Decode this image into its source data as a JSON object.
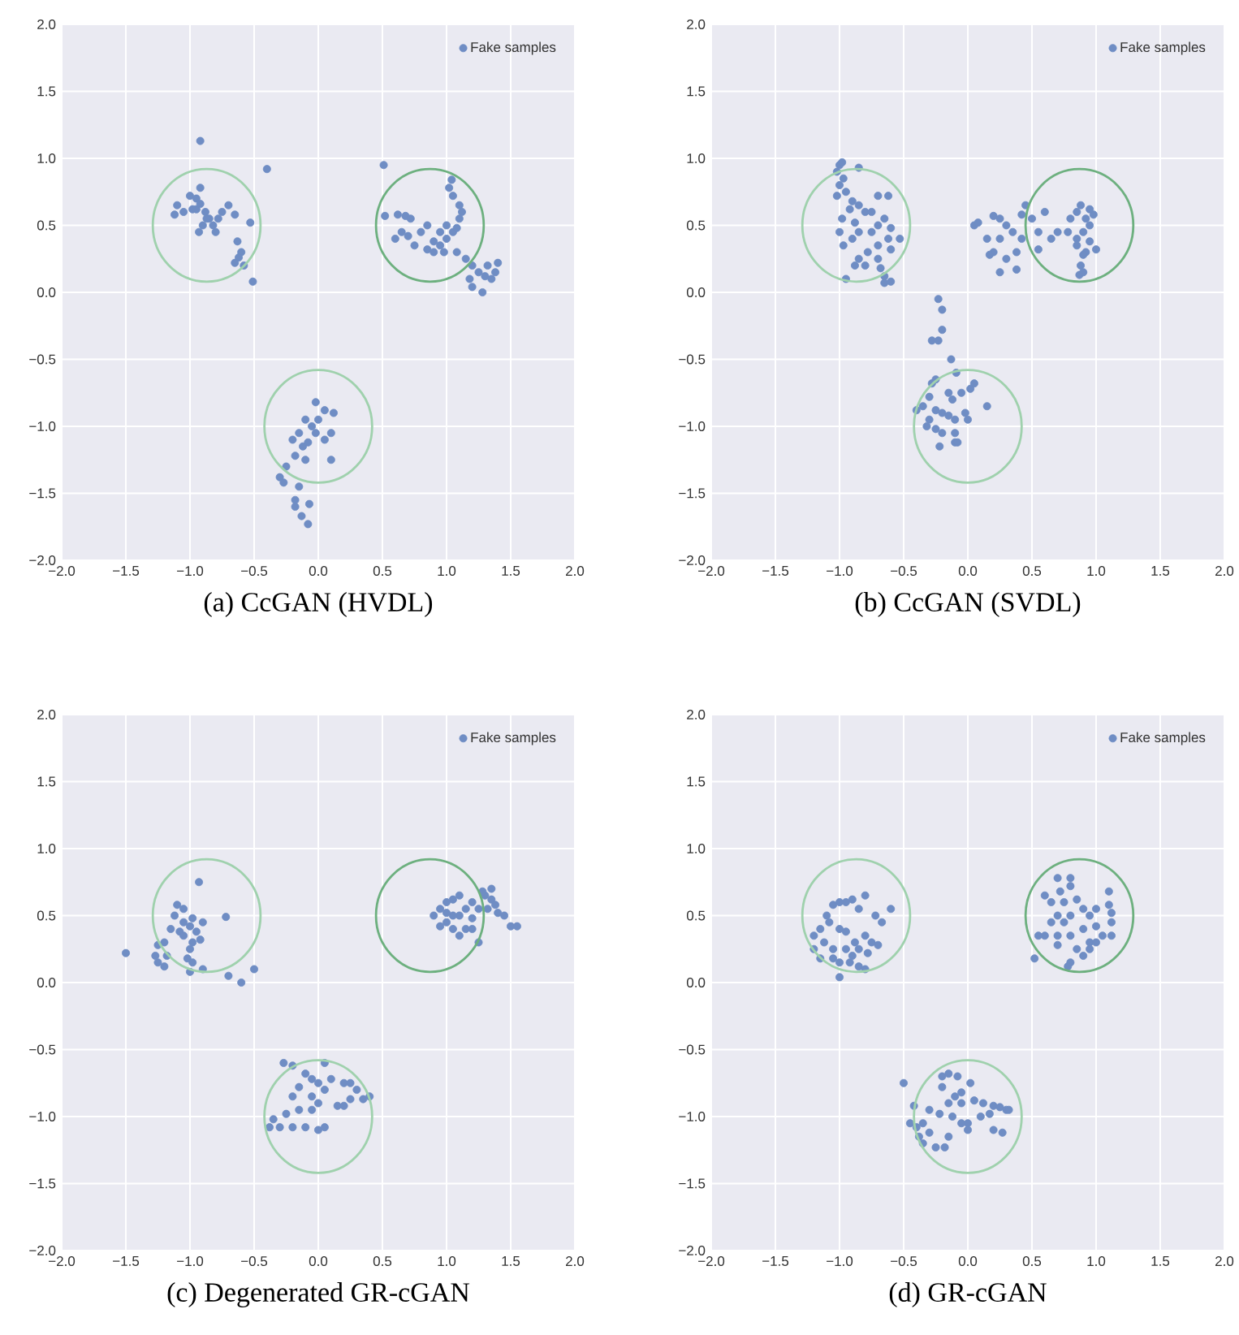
{
  "chart_data": [
    {
      "type": "scatter",
      "title": "(a) CcGAN (HVDL)",
      "xlim": [
        -2,
        2
      ],
      "ylim": [
        -2,
        2
      ],
      "xticks": [
        {
          "value": -2,
          "label": "−2.0"
        },
        {
          "value": -1.5,
          "label": "−1.5"
        },
        {
          "value": -1,
          "label": "−1.0"
        },
        {
          "value": -0.5,
          "label": "−0.5"
        },
        {
          "value": 0,
          "label": "0.0"
        },
        {
          "value": 0.5,
          "label": "0.5"
        },
        {
          "value": 1,
          "label": "1.0"
        },
        {
          "value": 1.5,
          "label": "1.5"
        },
        {
          "value": 2,
          "label": "2.0"
        }
      ],
      "yticks": [
        {
          "value": -2,
          "label": "−2.0"
        },
        {
          "value": -1.5,
          "label": "−1.5"
        },
        {
          "value": -1,
          "label": "−1.0"
        },
        {
          "value": -0.5,
          "label": "−0.5"
        },
        {
          "value": 0,
          "label": "0.0"
        },
        {
          "value": 0.5,
          "label": "0.5"
        },
        {
          "value": 1,
          "label": "1.0"
        },
        {
          "value": 1.5,
          "label": "1.5"
        },
        {
          "value": 2,
          "label": "2.0"
        }
      ],
      "grid": true,
      "legend": "top right",
      "series": [
        {
          "name": "Fake samples",
          "color": "#6f8dc4",
          "x": [
            -0.92,
            -0.4,
            -0.92,
            -0.95,
            -1.0,
            -1.1,
            -1.05,
            -0.95,
            -0.88,
            -0.85,
            -0.9,
            -0.82,
            -0.78,
            -0.75,
            -0.7,
            -0.93,
            -0.8,
            -0.87,
            -1.12,
            -0.65,
            -0.53,
            -0.63,
            -0.6,
            -0.62,
            -0.65,
            -0.58,
            -0.51,
            -0.98,
            -0.92,
            0.51,
            0.52,
            0.62,
            0.68,
            0.72,
            0.65,
            0.6,
            0.7,
            0.8,
            0.85,
            0.75,
            0.85,
            0.9,
            0.95,
            1.0,
            1.05,
            1.1,
            1.12,
            1.05,
            1.02,
            1.04,
            1.1,
            1.08,
            1.15,
            1.2,
            1.25,
            1.3,
            1.35,
            1.38,
            1.4,
            1.18,
            1.28,
            1.2,
            0.95,
            1.0,
            1.08,
            0.9,
            0.98,
            1.32,
            -0.02,
            0.05,
            0.12,
            0.0,
            -0.1,
            -0.05,
            0.1,
            0.05,
            -0.15,
            -0.2,
            -0.12,
            -0.18,
            0.1,
            -0.1,
            -0.25,
            -0.3,
            -0.27,
            -0.15,
            -0.18,
            -0.18,
            -0.07,
            -0.13,
            -0.08,
            -0.02,
            -0.08
          ],
          "values": [
            1.13,
            0.92,
            0.78,
            0.7,
            0.72,
            0.65,
            0.6,
            0.62,
            0.6,
            0.55,
            0.5,
            0.5,
            0.55,
            0.6,
            0.65,
            0.45,
            0.45,
            0.55,
            0.58,
            0.58,
            0.52,
            0.38,
            0.3,
            0.26,
            0.22,
            0.2,
            0.08,
            0.62,
            0.66,
            0.95,
            0.57,
            0.58,
            0.57,
            0.55,
            0.45,
            0.4,
            0.42,
            0.45,
            0.5,
            0.35,
            0.32,
            0.3,
            0.35,
            0.4,
            0.45,
            0.55,
            0.6,
            0.72,
            0.78,
            0.84,
            0.65,
            0.3,
            0.25,
            0.2,
            0.15,
            0.12,
            0.1,
            0.15,
            0.22,
            0.1,
            0.0,
            0.04,
            0.45,
            0.5,
            0.48,
            0.38,
            0.3,
            0.2,
            -0.82,
            -0.88,
            -0.9,
            -0.95,
            -0.95,
            -1.0,
            -1.05,
            -1.1,
            -1.05,
            -1.1,
            -1.15,
            -1.22,
            -1.25,
            -1.25,
            -1.3,
            -1.38,
            -1.42,
            -1.45,
            -1.55,
            -1.6,
            -1.58,
            -1.67,
            -1.73,
            -1.05,
            -1.12
          ]
        }
      ]
    },
    {
      "type": "scatter",
      "title": "(b) CcGAN (SVDL)",
      "xlim": [
        -2,
        2
      ],
      "ylim": [
        -2,
        2
      ],
      "xticks": [
        {
          "value": -2,
          "label": "−2.0"
        },
        {
          "value": -1.5,
          "label": "−1.5"
        },
        {
          "value": -1,
          "label": "−1.0"
        },
        {
          "value": -0.5,
          "label": "−0.5"
        },
        {
          "value": 0,
          "label": "0.0"
        },
        {
          "value": 0.5,
          "label": "0.5"
        },
        {
          "value": 1,
          "label": "1.0"
        },
        {
          "value": 1.5,
          "label": "1.5"
        },
        {
          "value": 2,
          "label": "2.0"
        }
      ],
      "yticks": [
        {
          "value": -2,
          "label": "−2.0"
        },
        {
          "value": -1.5,
          "label": "−1.5"
        },
        {
          "value": -1,
          "label": "−1.0"
        },
        {
          "value": -0.5,
          "label": "−0.5"
        },
        {
          "value": 0,
          "label": "0.0"
        },
        {
          "value": 0.5,
          "label": "0.5"
        },
        {
          "value": 1,
          "label": "1.0"
        },
        {
          "value": 1.5,
          "label": "1.5"
        },
        {
          "value": 2,
          "label": "2.0"
        }
      ],
      "grid": true,
      "legend": "top right",
      "series": [
        {
          "name": "Fake samples",
          "color": "#6f8dc4",
          "x": [
            -1.0,
            -0.98,
            -0.85,
            -1.02,
            -0.97,
            -1.0,
            -1.02,
            -0.95,
            -0.9,
            -0.85,
            -0.7,
            -0.62,
            -0.92,
            -0.8,
            -0.75,
            -0.98,
            -0.88,
            -0.65,
            -0.7,
            -0.6,
            -1.0,
            -0.85,
            -0.75,
            -0.9,
            -0.62,
            -0.53,
            -0.97,
            -0.7,
            -0.78,
            -0.6,
            -0.85,
            -0.7,
            -0.88,
            -0.8,
            -0.68,
            -0.65,
            -0.95,
            -0.65,
            -0.6,
            0.05,
            0.08,
            0.15,
            0.2,
            0.25,
            0.3,
            0.35,
            0.25,
            0.2,
            0.17,
            0.3,
            0.38,
            0.42,
            0.45,
            0.42,
            0.5,
            0.55,
            0.6,
            0.65,
            0.7,
            0.55,
            0.25,
            0.38,
            0.8,
            0.85,
            0.88,
            0.92,
            0.95,
            0.9,
            0.85,
            0.95,
            0.92,
            0.88,
            0.87,
            0.9,
            1.0,
            0.98,
            0.78,
            0.85,
            0.95,
            0.9,
            -0.23,
            -0.2,
            -0.2,
            -0.28,
            -0.23,
            -0.13,
            -0.09,
            -0.28,
            -0.25,
            0.05,
            0.02,
            -0.05,
            -0.15,
            -0.12,
            -0.3,
            -0.4,
            -0.35,
            -0.25,
            -0.2,
            -0.15,
            -0.1,
            0.0,
            0.15,
            -0.3,
            -0.32,
            -0.25,
            -0.2,
            -0.1,
            -0.22,
            -0.1,
            -0.08,
            -0.02
          ],
          "values": [
            0.95,
            0.97,
            0.93,
            0.9,
            0.85,
            0.8,
            0.72,
            0.75,
            0.68,
            0.65,
            0.72,
            0.72,
            0.62,
            0.6,
            0.6,
            0.55,
            0.52,
            0.55,
            0.5,
            0.48,
            0.45,
            0.45,
            0.45,
            0.4,
            0.4,
            0.4,
            0.35,
            0.35,
            0.3,
            0.32,
            0.25,
            0.25,
            0.2,
            0.2,
            0.18,
            0.12,
            0.1,
            0.07,
            0.08,
            0.5,
            0.52,
            0.4,
            0.57,
            0.55,
            0.5,
            0.45,
            0.4,
            0.3,
            0.28,
            0.25,
            0.3,
            0.4,
            0.65,
            0.58,
            0.55,
            0.45,
            0.6,
            0.4,
            0.45,
            0.32,
            0.15,
            0.17,
            0.55,
            0.6,
            0.65,
            0.55,
            0.5,
            0.45,
            0.4,
            0.38,
            0.3,
            0.2,
            0.13,
            0.15,
            0.32,
            0.58,
            0.45,
            0.35,
            0.62,
            0.28,
            -0.05,
            -0.13,
            -0.28,
            -0.36,
            -0.36,
            -0.5,
            -0.6,
            -0.68,
            -0.65,
            -0.68,
            -0.72,
            -0.75,
            -0.75,
            -0.8,
            -0.78,
            -0.88,
            -0.85,
            -0.88,
            -0.9,
            -0.92,
            -0.95,
            -0.95,
            -0.85,
            -0.95,
            -1.0,
            -1.02,
            -1.05,
            -1.05,
            -1.15,
            -1.12,
            -1.12,
            -0.9
          ]
        }
      ]
    },
    {
      "type": "scatter",
      "title": "(c) Degenerated GR-cGAN",
      "xlim": [
        -2,
        2
      ],
      "ylim": [
        -2,
        2
      ],
      "xticks": [
        {
          "value": -2,
          "label": "−2.0"
        },
        {
          "value": -1.5,
          "label": "−1.5"
        },
        {
          "value": -1,
          "label": "−1.0"
        },
        {
          "value": -0.5,
          "label": "−0.5"
        },
        {
          "value": 0,
          "label": "0.0"
        },
        {
          "value": 0.5,
          "label": "0.5"
        },
        {
          "value": 1,
          "label": "1.0"
        },
        {
          "value": 1.5,
          "label": "1.5"
        },
        {
          "value": 2,
          "label": "2.0"
        }
      ],
      "yticks": [
        {
          "value": -2,
          "label": "−2.0"
        },
        {
          "value": -1.5,
          "label": "−1.5"
        },
        {
          "value": -1,
          "label": "−1.0"
        },
        {
          "value": -0.5,
          "label": "−0.5"
        },
        {
          "value": 0,
          "label": "0.0"
        },
        {
          "value": 0.5,
          "label": "0.5"
        },
        {
          "value": 1,
          "label": "1.0"
        },
        {
          "value": 1.5,
          "label": "1.5"
        },
        {
          "value": 2,
          "label": "2.0"
        }
      ],
      "grid": true,
      "legend": "top right",
      "series": [
        {
          "name": "Fake samples",
          "color": "#6f8dc4",
          "x": [
            -1.5,
            -0.93,
            -1.1,
            -1.05,
            -1.12,
            -1.05,
            -0.98,
            -0.9,
            -0.72,
            -1.15,
            -1.08,
            -1.0,
            -0.95,
            -0.98,
            -1.0,
            -1.25,
            -1.2,
            -1.27,
            -1.25,
            -1.2,
            -1.18,
            -1.02,
            -0.98,
            -0.9,
            -1.0,
            -0.7,
            -0.5,
            -0.6,
            -1.05,
            -0.92,
            0.9,
            0.95,
            1.0,
            1.05,
            1.1,
            1.2,
            1.25,
            1.3,
            1.35,
            1.38,
            1.32,
            1.4,
            1.45,
            1.5,
            1.55,
            1.2,
            1.25,
            1.15,
            1.1,
            1.05,
            1.0,
            0.95,
            1.1,
            1.15,
            1.05,
            1.2,
            1.0,
            1.28,
            1.35,
            -0.27,
            -0.2,
            0.05,
            -0.1,
            -0.05,
            0.0,
            0.1,
            0.2,
            0.25,
            0.3,
            0.35,
            0.4,
            0.25,
            0.05,
            -0.15,
            -0.2,
            -0.05,
            0.0,
            0.15,
            0.2,
            -0.15,
            -0.25,
            -0.35,
            -0.38,
            -0.3,
            -0.2,
            -0.1,
            0.0,
            0.05,
            -0.05
          ],
          "values": [
            0.22,
            0.75,
            0.58,
            0.55,
            0.5,
            0.45,
            0.48,
            0.45,
            0.49,
            0.4,
            0.38,
            0.42,
            0.38,
            0.3,
            0.25,
            0.28,
            0.3,
            0.2,
            0.15,
            0.12,
            0.2,
            0.18,
            0.15,
            0.1,
            0.08,
            0.05,
            0.1,
            0.0,
            0.35,
            0.32,
            0.5,
            0.55,
            0.6,
            0.62,
            0.65,
            0.6,
            0.55,
            0.65,
            0.62,
            0.58,
            0.55,
            0.52,
            0.5,
            0.42,
            0.42,
            0.4,
            0.3,
            0.4,
            0.35,
            0.4,
            0.45,
            0.42,
            0.5,
            0.55,
            0.5,
            0.48,
            0.52,
            0.68,
            0.7,
            -0.6,
            -0.62,
            -0.6,
            -0.68,
            -0.72,
            -0.75,
            -0.72,
            -0.75,
            -0.75,
            -0.8,
            -0.87,
            -0.85,
            -0.87,
            -0.8,
            -0.78,
            -0.85,
            -0.85,
            -0.9,
            -0.92,
            -0.92,
            -0.95,
            -0.98,
            -1.02,
            -1.08,
            -1.08,
            -1.08,
            -1.08,
            -1.1,
            -1.08,
            -0.95
          ]
        }
      ]
    },
    {
      "type": "scatter",
      "title": "(d) GR-cGAN",
      "xlim": [
        -2,
        2
      ],
      "ylim": [
        -2,
        2
      ],
      "xticks": [
        {
          "value": -2,
          "label": "−2.0"
        },
        {
          "value": -1.5,
          "label": "−1.5"
        },
        {
          "value": -1,
          "label": "−1.0"
        },
        {
          "value": -0.5,
          "label": "−0.5"
        },
        {
          "value": 0,
          "label": "0.0"
        },
        {
          "value": 0.5,
          "label": "0.5"
        },
        {
          "value": 1,
          "label": "1.0"
        },
        {
          "value": 1.5,
          "label": "1.5"
        },
        {
          "value": 2,
          "label": "2.0"
        }
      ],
      "yticks": [
        {
          "value": -2,
          "label": "−2.0"
        },
        {
          "value": -1.5,
          "label": "−1.5"
        },
        {
          "value": -1,
          "label": "−1.0"
        },
        {
          "value": -0.5,
          "label": "−0.5"
        },
        {
          "value": 0,
          "label": "0.0"
        },
        {
          "value": 0.5,
          "label": "0.5"
        },
        {
          "value": 1,
          "label": "1.0"
        },
        {
          "value": 1.5,
          "label": "1.5"
        },
        {
          "value": 2,
          "label": "2.0"
        }
      ],
      "grid": true,
      "legend": "top right",
      "series": [
        {
          "name": "Fake samples",
          "color": "#6f8dc4",
          "x": [
            -1.05,
            -1.0,
            -0.95,
            -0.85,
            -0.8,
            -0.9,
            -0.72,
            -0.67,
            -0.6,
            -1.1,
            -1.08,
            -1.15,
            -1.0,
            -0.95,
            -0.88,
            -0.8,
            -0.75,
            -0.7,
            -0.78,
            -0.85,
            -0.95,
            -1.05,
            -1.12,
            -1.2,
            -1.15,
            -1.05,
            -1.0,
            -0.92,
            -0.85,
            -0.8,
            -1.0,
            -1.2,
            -0.9,
            0.7,
            0.8,
            0.8,
            0.72,
            0.6,
            0.65,
            0.75,
            0.85,
            0.9,
            0.95,
            1.0,
            1.1,
            1.12,
            1.1,
            1.12,
            1.12,
            1.0,
            0.9,
            0.8,
            0.7,
            0.6,
            0.55,
            0.52,
            0.65,
            0.75,
            0.8,
            0.7,
            0.85,
            0.95,
            1.0,
            0.9,
            0.8,
            0.78,
            0.95,
            1.05,
            0.7,
            -0.5,
            -0.2,
            -0.15,
            -0.08,
            -0.2,
            -0.1,
            -0.05,
            0.02,
            -0.15,
            -0.05,
            0.05,
            0.12,
            0.2,
            0.25,
            0.3,
            0.32,
            -0.42,
            -0.3,
            -0.22,
            -0.12,
            0.0,
            0.1,
            0.17,
            0.2,
            0.27,
            -0.45,
            -0.4,
            -0.35,
            -0.3,
            -0.38,
            -0.35,
            -0.25,
            -0.18,
            -0.15,
            -0.05,
            0.0
          ],
          "values": [
            0.58,
            0.6,
            0.6,
            0.55,
            0.65,
            0.62,
            0.5,
            0.45,
            0.55,
            0.5,
            0.45,
            0.4,
            0.4,
            0.38,
            0.3,
            0.35,
            0.3,
            0.28,
            0.22,
            0.25,
            0.25,
            0.25,
            0.3,
            0.25,
            0.18,
            0.18,
            0.15,
            0.15,
            0.12,
            0.1,
            0.04,
            0.35,
            0.2,
            0.78,
            0.78,
            0.72,
            0.68,
            0.65,
            0.6,
            0.6,
            0.62,
            0.55,
            0.5,
            0.55,
            0.58,
            0.52,
            0.68,
            0.45,
            0.35,
            0.42,
            0.4,
            0.35,
            0.35,
            0.35,
            0.35,
            0.18,
            0.45,
            0.45,
            0.5,
            0.28,
            0.25,
            0.3,
            0.3,
            0.2,
            0.15,
            0.12,
            0.25,
            0.35,
            0.5,
            -0.75,
            -0.7,
            -0.68,
            -0.7,
            -0.78,
            -0.85,
            -0.82,
            -0.75,
            -0.9,
            -0.9,
            -0.88,
            -0.9,
            -0.92,
            -0.93,
            -0.95,
            -0.95,
            -0.92,
            -0.95,
            -0.98,
            -1.0,
            -1.05,
            -1.0,
            -0.98,
            -1.1,
            -1.12,
            -1.05,
            -1.08,
            -1.05,
            -1.12,
            -1.15,
            -1.2,
            -1.23,
            -1.23,
            -1.15,
            -1.05,
            -1.1
          ]
        }
      ]
    }
  ]
}
